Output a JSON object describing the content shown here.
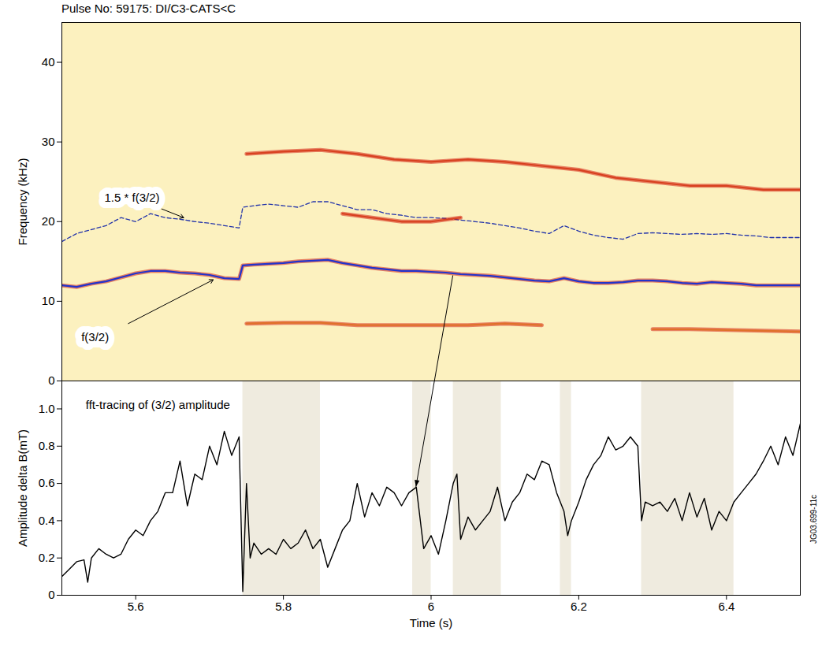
{
  "chart_data": [
    {
      "type": "line",
      "title": "Pulse No:  59175: DI/C3-CATS<C",
      "ylabel": "Frequency (kHz)",
      "xlim": [
        5.5,
        6.5
      ],
      "ylim": [
        0,
        45
      ],
      "yticks": [
        0,
        10,
        20,
        30,
        40
      ],
      "tick_labels": "y",
      "series": [
        {
          "color": "#2233cc",
          "line_style": "solid",
          "x": [
            5.5,
            5.52,
            5.54,
            5.56,
            5.58,
            5.6,
            5.62,
            5.64,
            5.66,
            5.68,
            5.7,
            5.72,
            5.74,
            5.745,
            5.76,
            5.78,
            5.8,
            5.82,
            5.84,
            5.86,
            5.88,
            5.9,
            5.92,
            5.94,
            5.96,
            5.98,
            6.0,
            6.02,
            6.04,
            6.06,
            6.08,
            6.1,
            6.12,
            6.14,
            6.16,
            6.18,
            6.2,
            6.22,
            6.24,
            6.26,
            6.28,
            6.3,
            6.32,
            6.34,
            6.36,
            6.38,
            6.4,
            6.42,
            6.44,
            6.46,
            6.48,
            6.5
          ],
          "values": [
            12.0,
            11.8,
            12.2,
            12.5,
            13.0,
            13.5,
            13.8,
            13.8,
            13.6,
            13.5,
            13.3,
            12.9,
            12.8,
            14.5,
            14.6,
            14.7,
            14.8,
            15.0,
            15.1,
            15.2,
            14.8,
            14.5,
            14.2,
            14.0,
            13.8,
            13.8,
            13.7,
            13.6,
            13.4,
            13.3,
            13.2,
            13.0,
            12.8,
            12.6,
            12.5,
            12.9,
            12.5,
            12.3,
            12.3,
            12.4,
            12.6,
            12.6,
            12.5,
            12.3,
            12.2,
            12.4,
            12.3,
            12.2,
            12.0,
            12.0,
            12.0,
            12.0
          ]
        },
        {
          "color": "#2233aa",
          "line_style": "dashed",
          "x": [
            5.5,
            5.52,
            5.54,
            5.56,
            5.58,
            5.6,
            5.62,
            5.64,
            5.66,
            5.68,
            5.7,
            5.72,
            5.74,
            5.745,
            5.76,
            5.78,
            5.8,
            5.82,
            5.84,
            5.86,
            5.88,
            5.9,
            5.92,
            5.94,
            5.96,
            5.98,
            6.0,
            6.02,
            6.04,
            6.06,
            6.08,
            6.1,
            6.12,
            6.14,
            6.16,
            6.18,
            6.2,
            6.22,
            6.24,
            6.26,
            6.28,
            6.3,
            6.32,
            6.34,
            6.36,
            6.38,
            6.4,
            6.42,
            6.44,
            6.46,
            6.48,
            6.5
          ],
          "values": [
            17.5,
            18.5,
            19.0,
            19.5,
            20.5,
            20.0,
            21.0,
            20.5,
            20.3,
            20.0,
            19.8,
            19.5,
            19.2,
            21.8,
            22.0,
            22.2,
            22.0,
            21.8,
            22.5,
            22.5,
            22.0,
            21.5,
            21.5,
            21.0,
            20.8,
            20.5,
            20.5,
            20.4,
            20.2,
            20.0,
            19.8,
            19.5,
            19.2,
            18.8,
            18.5,
            19.5,
            18.8,
            18.3,
            18.0,
            17.8,
            18.5,
            18.6,
            18.5,
            18.4,
            18.5,
            18.4,
            18.5,
            18.3,
            18.2,
            18.0,
            18.0,
            18.0
          ]
        },
        {
          "color": "#d8401f",
          "line_style": "solid",
          "x": [
            5.75,
            5.8,
            5.85,
            5.9,
            5.95,
            6.0,
            6.05,
            6.1,
            6.15,
            6.2,
            6.25,
            6.3,
            6.35,
            6.4,
            6.45,
            6.5
          ],
          "values": [
            28.5,
            28.8,
            29.0,
            28.5,
            27.8,
            27.5,
            27.8,
            27.5,
            27.0,
            26.5,
            25.5,
            25.0,
            24.5,
            24.5,
            24.0,
            24.0
          ]
        },
        {
          "color": "#d8401f",
          "line_style": "solid",
          "x": [
            5.88,
            5.92,
            5.96,
            6.0,
            6.04
          ],
          "values": [
            21.0,
            20.5,
            20.0,
            20.0,
            20.5
          ]
        },
        {
          "color": "#e0702a",
          "line_style": "solid",
          "x": [
            5.75,
            5.8,
            5.85,
            5.9,
            5.95,
            6.0,
            6.05,
            6.1,
            6.15,
            6.22,
            6.3,
            6.35,
            6.4,
            6.45,
            6.5
          ],
          "values": [
            7.2,
            7.3,
            7.3,
            7.0,
            7.0,
            7.0,
            7.0,
            7.2,
            7.0,
            null,
            6.5,
            6.5,
            6.4,
            6.3,
            6.2
          ]
        }
      ],
      "annotations": [
        {
          "text": "1.5 * f(3/2)",
          "x": 5.595,
          "y": 23.0,
          "arrow_from": [
            5.635,
            21.6
          ],
          "arrow_to": [
            5.665,
            20.5
          ]
        },
        {
          "text": "f(3/2)",
          "x": 5.545,
          "y": 5.5,
          "arrow_from": [
            5.59,
            7.2
          ],
          "arrow_to": [
            5.705,
            12.7
          ]
        }
      ],
      "links": [
        {
          "from": [
            6.03,
            13.2
          ],
          "to": [
            5.98,
            0.58
          ]
        }
      ]
    },
    {
      "type": "line",
      "xlabel": "Time (s)",
      "ylabel": "Amplitude delta B(mT)",
      "xlim": [
        5.5,
        6.5
      ],
      "ylim": [
        0,
        1.15
      ],
      "xticks": [
        5.6,
        5.8,
        6.0,
        6.2,
        6.4
      ],
      "yticks": [
        0,
        0.2,
        0.4,
        0.6,
        0.8,
        {
          "value": 1,
          "label": "1.0"
        }
      ],
      "color": "#000000",
      "annotations": [
        {
          "text": "fft-tracing of (3/2) amplitude",
          "x": 5.63,
          "y": 1.02
        }
      ],
      "shaded_intervals": [
        [
          5.745,
          5.85
        ],
        [
          5.975,
          6.0
        ],
        [
          6.03,
          6.095
        ],
        [
          6.175,
          6.19
        ],
        [
          6.285,
          6.41
        ]
      ],
      "note": "JG03.699-11c",
      "x": [
        5.5,
        5.51,
        5.52,
        5.53,
        5.535,
        5.54,
        5.55,
        5.56,
        5.57,
        5.58,
        5.59,
        5.6,
        5.61,
        5.62,
        5.63,
        5.64,
        5.65,
        5.66,
        5.67,
        5.68,
        5.69,
        5.7,
        5.71,
        5.72,
        5.73,
        5.74,
        5.745,
        5.75,
        5.755,
        5.76,
        5.77,
        5.78,
        5.79,
        5.8,
        5.81,
        5.82,
        5.83,
        5.84,
        5.85,
        5.86,
        5.87,
        5.88,
        5.89,
        5.9,
        5.91,
        5.92,
        5.93,
        5.94,
        5.95,
        5.96,
        5.97,
        5.98,
        5.99,
        6.0,
        6.01,
        6.02,
        6.03,
        6.035,
        6.04,
        6.05,
        6.06,
        6.07,
        6.08,
        6.09,
        6.1,
        6.11,
        6.12,
        6.13,
        6.14,
        6.15,
        6.16,
        6.17,
        6.18,
        6.185,
        6.19,
        6.2,
        6.21,
        6.22,
        6.23,
        6.24,
        6.25,
        6.26,
        6.27,
        6.28,
        6.285,
        6.29,
        6.3,
        6.31,
        6.32,
        6.33,
        6.34,
        6.35,
        6.36,
        6.37,
        6.38,
        6.39,
        6.4,
        6.41,
        6.42,
        6.43,
        6.44,
        6.45,
        6.46,
        6.47,
        6.48,
        6.49,
        6.5
      ],
      "values": [
        0.1,
        0.14,
        0.18,
        0.19,
        0.07,
        0.2,
        0.25,
        0.22,
        0.2,
        0.22,
        0.3,
        0.35,
        0.32,
        0.4,
        0.45,
        0.55,
        0.55,
        0.72,
        0.48,
        0.65,
        0.62,
        0.8,
        0.7,
        0.88,
        0.75,
        0.85,
        0.02,
        0.6,
        0.2,
        0.28,
        0.22,
        0.25,
        0.22,
        0.3,
        0.25,
        0.28,
        0.35,
        0.25,
        0.3,
        0.15,
        0.25,
        0.35,
        0.4,
        0.6,
        0.42,
        0.55,
        0.48,
        0.58,
        0.55,
        0.48,
        0.55,
        0.58,
        0.25,
        0.32,
        0.22,
        0.4,
        0.6,
        0.65,
        0.3,
        0.42,
        0.35,
        0.4,
        0.45,
        0.58,
        0.4,
        0.5,
        0.55,
        0.65,
        0.62,
        0.72,
        0.7,
        0.55,
        0.45,
        0.32,
        0.4,
        0.5,
        0.62,
        0.7,
        0.75,
        0.85,
        0.78,
        0.8,
        0.85,
        0.8,
        0.4,
        0.5,
        0.48,
        0.5,
        0.45,
        0.52,
        0.4,
        0.55,
        0.42,
        0.52,
        0.35,
        0.45,
        0.4,
        0.5,
        0.55,
        0.6,
        0.65,
        0.72,
        0.8,
        0.7,
        0.85,
        0.75,
        0.92
      ]
    }
  ]
}
